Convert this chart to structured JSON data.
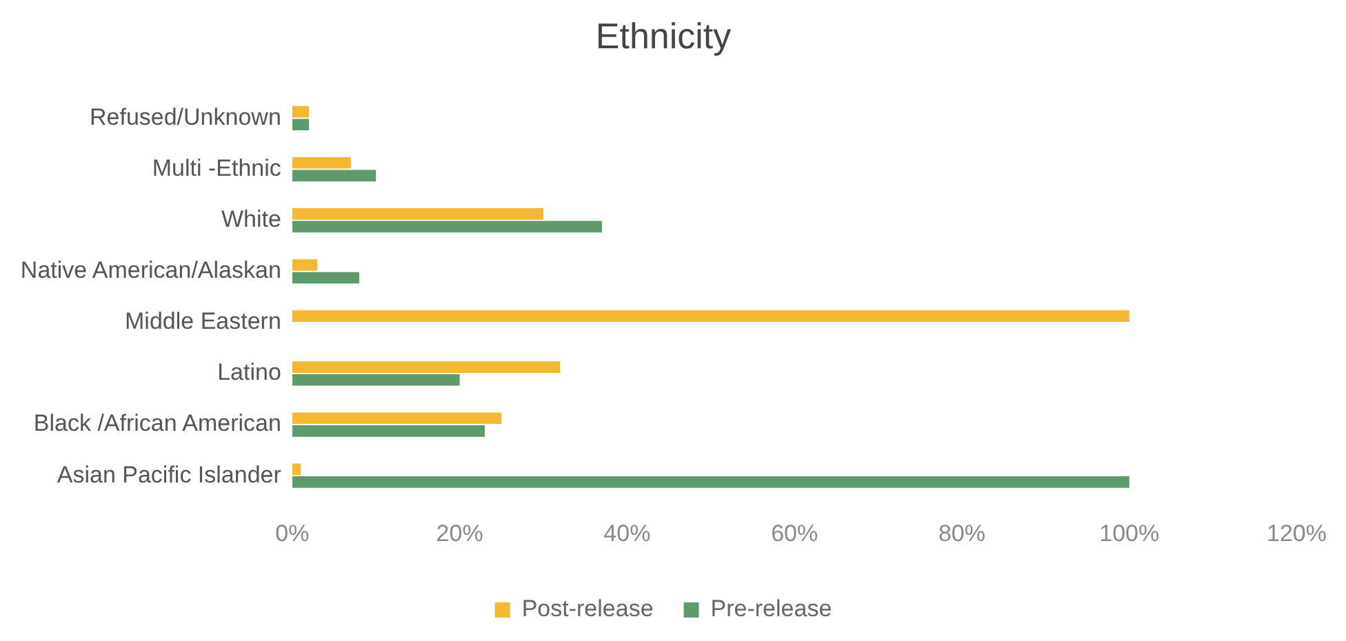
{
  "chart_data": {
    "type": "bar",
    "orientation": "horizontal",
    "title": "Ethnicity",
    "categories": [
      "Refused/Unknown",
      "Multi -Ethnic",
      "White",
      "Native American/Alaskan",
      "Middle Eastern",
      "Latino",
      "Black /African American",
      "Asian Pacific Islander"
    ],
    "series": [
      {
        "name": "Post-release",
        "color": "#f4b931",
        "values": [
          2,
          7,
          30,
          3,
          100,
          32,
          25,
          1
        ]
      },
      {
        "name": "Pre-release",
        "color": "#5f9a6b",
        "values": [
          2,
          10,
          37,
          8,
          0,
          20,
          23,
          100
        ]
      }
    ],
    "xlim": [
      0,
      120
    ],
    "xticks": [
      {
        "value": 0,
        "label": "0%"
      },
      {
        "value": 20,
        "label": "20%"
      },
      {
        "value": 40,
        "label": "40%"
      },
      {
        "value": 60,
        "label": "60%"
      },
      {
        "value": 80,
        "label": "80%"
      },
      {
        "value": 100,
        "label": "100%"
      },
      {
        "value": 120,
        "label": "120%"
      }
    ],
    "grid": false,
    "legend": "bottom"
  }
}
